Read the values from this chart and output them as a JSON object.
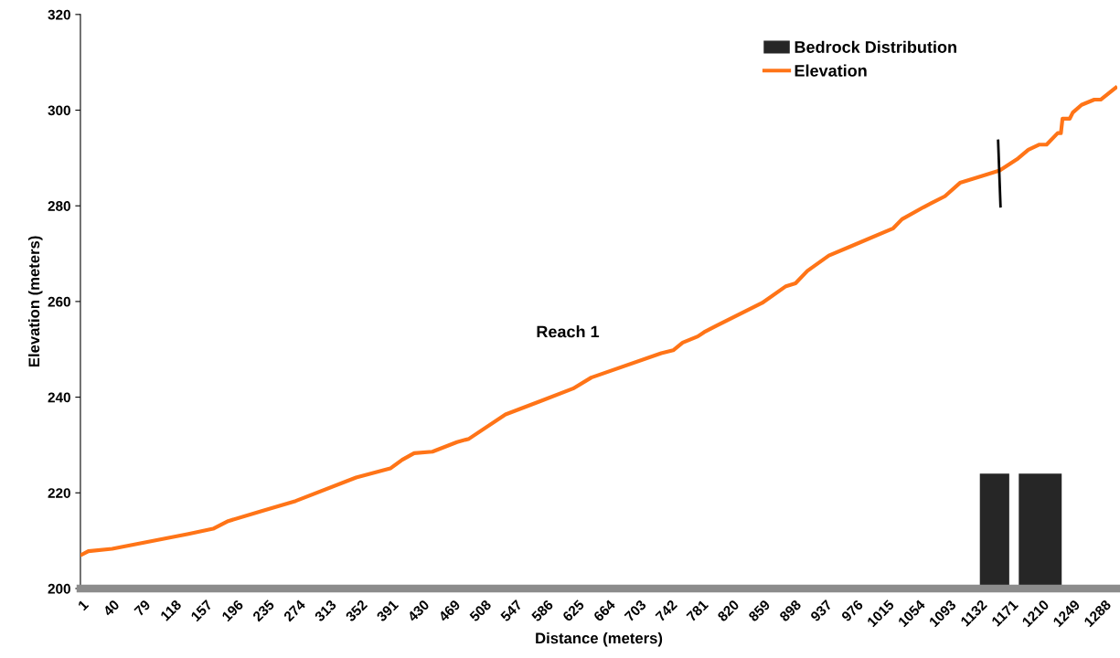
{
  "chart_data": {
    "type": "line",
    "xlabel": "Distance (meters)",
    "ylabel": "Elevation (meters)",
    "annotations": [
      "Reach 1"
    ],
    "series": [
      {
        "name": "Bedrock Distribution",
        "type": "area",
        "color": "#262626",
        "x": [
          1131,
          1168,
          1174,
          1180,
          1234
        ],
        "values": [
          224,
          224,
          null,
          224,
          224
        ]
      },
      {
        "name": "Elevation",
        "color": "#ff7417",
        "x": [
          1,
          9,
          39,
          135,
          166,
          185,
          227,
          270,
          346,
          389,
          404,
          419,
          442,
          473,
          488,
          534,
          580,
          619,
          642,
          730,
          745,
          757,
          776,
          784,
          799,
          857,
          887,
          899,
          914,
          941,
          968,
          1022,
          1033,
          1060,
          1087,
          1106,
          1133,
          1156,
          1179,
          1192,
          1206,
          1215,
          1229,
          1233,
          1235,
          1244,
          1248,
          1259,
          1275,
          1283,
          1302
        ],
        "values": [
          207.1,
          207.8,
          208.3,
          211.4,
          212.5,
          214.1,
          216.2,
          218.3,
          223.2,
          225.1,
          226.9,
          228.3,
          228.6,
          230.6,
          231.3,
          236.4,
          239.3,
          241.8,
          244.1,
          249.2,
          249.8,
          251.4,
          252.7,
          253.6,
          254.9,
          259.7,
          263.2,
          263.8,
          266.4,
          269.6,
          271.5,
          275.3,
          277.2,
          279.7,
          282.0,
          284.8,
          286.2,
          287.4,
          289.9,
          291.7,
          292.8,
          292.8,
          295.2,
          295.2,
          298.2,
          298.2,
          299.5,
          301.1,
          302.2,
          302.2,
          304.7
        ]
      },
      {
        "color": "#000000",
        "x": [
          1154,
          1157
        ],
        "values": [
          293.6,
          279.9
        ]
      }
    ],
    "xlim": [
      -1,
      1304
    ],
    "ylim": [
      200,
      320
    ],
    "xticks": [
      1,
      40,
      79,
      118,
      157,
      196,
      235,
      274,
      313,
      352,
      391,
      430,
      469,
      508,
      547,
      586,
      625,
      664,
      703,
      742,
      781,
      820,
      859,
      898,
      937,
      976,
      1015,
      1054,
      1093,
      1132,
      1171,
      1210,
      1249,
      1288
    ],
    "yticks": [
      200,
      220,
      240,
      260,
      280,
      300,
      320
    ],
    "grid": false,
    "legend": "top right"
  }
}
